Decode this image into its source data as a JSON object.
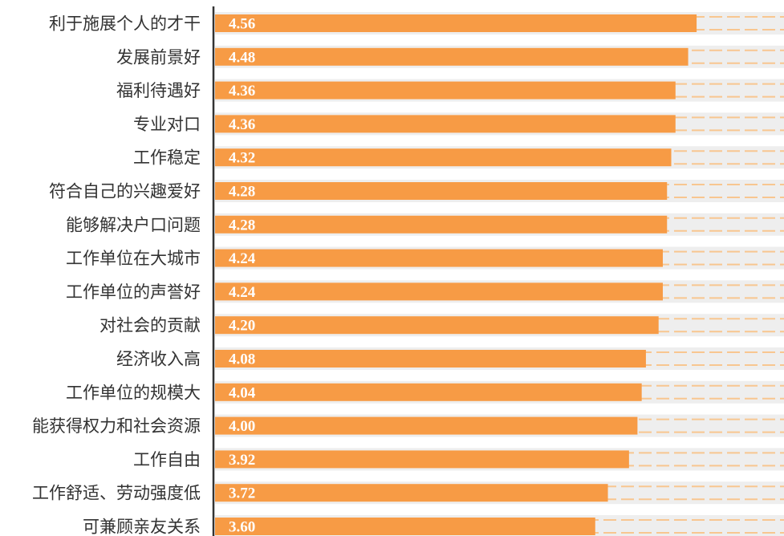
{
  "chart_data": {
    "type": "bar",
    "orientation": "horizontal",
    "categories": [
      "利于施展个人的才干",
      "发展前景好",
      "福利待遇好",
      "专业对口",
      "工作稳定",
      "符合自己的兴趣爱好",
      "能够解决户口问题",
      "工作单位在大城市",
      "工作单位的声誉好",
      "对社会的贡献",
      "经济收入高",
      "工作单位的规模大",
      "能获得权力和社会资源",
      "工作自由",
      "工作舒适、劳动强度低",
      "可兼顾亲友关系"
    ],
    "values": [
      4.56,
      4.48,
      4.36,
      4.36,
      4.32,
      4.28,
      4.28,
      4.24,
      4.24,
      4.2,
      4.08,
      4.04,
      4.0,
      3.92,
      3.72,
      3.6
    ],
    "value_labels": [
      "4.56",
      "4.48",
      "4.36",
      "4.36",
      "4.32",
      "4.28",
      "4.28",
      "4.24",
      "4.24",
      "4.20",
      "4.08",
      "4.04",
      "4.00",
      "3.92",
      "3.72",
      "3.60"
    ],
    "xlim": [
      0,
      5
    ],
    "title": "",
    "xlabel": "",
    "ylabel": "",
    "grid": false,
    "legend": "none",
    "colors": {
      "bar": "#F79B45",
      "track": "#EEEEEE",
      "dash": "#F8C690",
      "axis": "#333333",
      "value_text": "#FFFFFF",
      "category_text": "#333333"
    }
  }
}
